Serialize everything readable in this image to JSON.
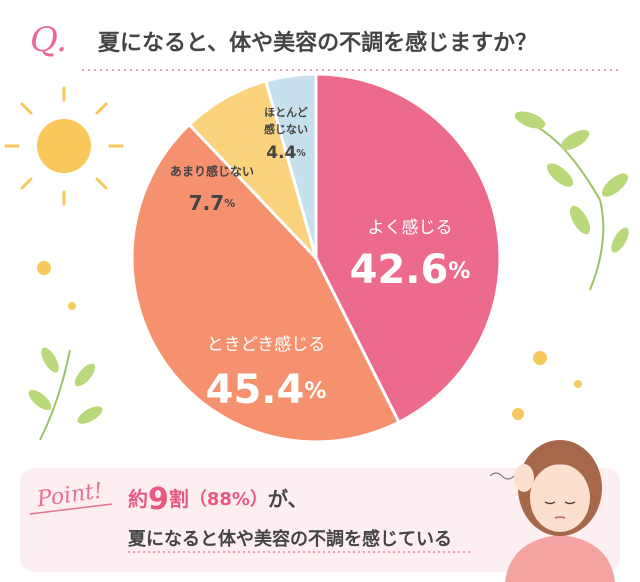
{
  "chart_data": {
    "type": "pie",
    "question_mark": "Q.",
    "title": "夏になると、体や美容の不調を感じますか？",
    "categories": [
      "よく感じる",
      "ときどき感じる",
      "あまり感じない",
      "ほとんど感じない"
    ],
    "values": [
      42.6,
      45.4,
      7.7,
      4.4
    ],
    "value_labels": [
      "42.6%",
      "45.4%",
      "7.7%",
      "4.4%"
    ],
    "colors": [
      "#ec6b8d",
      "#f5916f",
      "#fbd37d",
      "#c7e0ee"
    ],
    "callout": {
      "badge": "Point!",
      "line1": [
        "約",
        "9",
        "割",
        "（88%）",
        "が、"
      ],
      "line2": "夏になると体や美容の不調を感じている"
    }
  }
}
